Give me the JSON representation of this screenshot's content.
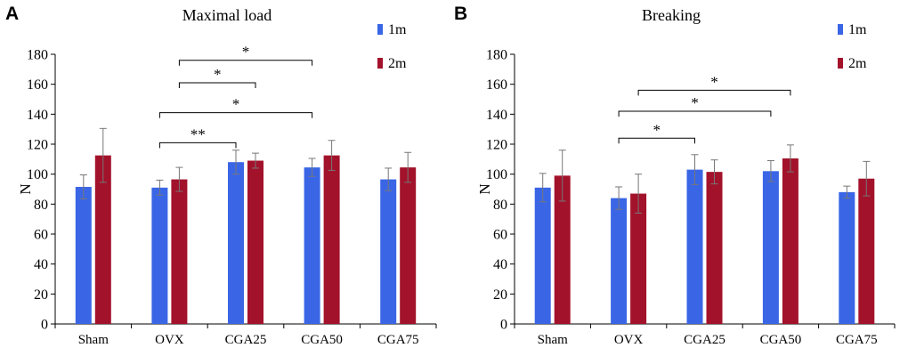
{
  "panels": [
    {
      "letter": "A"
    },
    {
      "letter": "B"
    }
  ],
  "chart_data": [
    {
      "type": "bar",
      "title": "Maximal load",
      "xlabel": "",
      "ylabel": "N",
      "ylim": [
        0,
        180
      ],
      "yticks": [
        0,
        20,
        40,
        60,
        80,
        100,
        120,
        140,
        160,
        180
      ],
      "categories": [
        "Sham",
        "OVX",
        "CGA25",
        "CGA50",
        "CGA75"
      ],
      "legend_position": "top-right",
      "series": [
        {
          "name": "1m",
          "color": "#3A66E6",
          "values": [
            91.5,
            91,
            108,
            104.5,
            96.5
          ],
          "errors": [
            8,
            5,
            8,
            6,
            7.5
          ]
        },
        {
          "name": "2m",
          "color": "#A3122B",
          "values": [
            112.5,
            96.5,
            109,
            112.5,
            104.5
          ],
          "errors": [
            18,
            8,
            5,
            10,
            10
          ]
        }
      ],
      "significance": [
        {
          "from": 1,
          "from_series": 0,
          "to": 2,
          "to_series": 0,
          "level": 121,
          "label": "**"
        },
        {
          "from": 1,
          "from_series": 0,
          "to": 3,
          "to_series": 0,
          "level": 141,
          "label": "*"
        },
        {
          "from": 1,
          "from_series": 1,
          "to": 2,
          "to_series": 1,
          "level": 161,
          "label": "*"
        },
        {
          "from": 1,
          "from_series": 1,
          "to": 3,
          "to_series": 0,
          "level": 176,
          "label": "*"
        }
      ]
    },
    {
      "type": "bar",
      "title": "Breaking",
      "xlabel": "",
      "ylabel": "N",
      "ylim": [
        0,
        180
      ],
      "yticks": [
        0,
        20,
        40,
        60,
        80,
        100,
        120,
        140,
        160,
        180
      ],
      "categories": [
        "Sham",
        "OVX",
        "CGA25",
        "CGA50",
        "CGA75"
      ],
      "legend_position": "top-right",
      "series": [
        {
          "name": "1m",
          "color": "#3A66E6",
          "values": [
            91,
            84,
            103,
            102,
            88
          ],
          "errors": [
            9.5,
            7.5,
            10,
            7,
            4
          ]
        },
        {
          "name": "2m",
          "color": "#A3122B",
          "values": [
            99,
            87,
            101.5,
            110.5,
            97
          ],
          "errors": [
            17,
            13,
            8,
            9,
            11.5
          ]
        }
      ],
      "significance": [
        {
          "from": 1,
          "from_series": 0,
          "to": 2,
          "to_series": 0,
          "level": 124,
          "label": "*"
        },
        {
          "from": 1,
          "from_series": 0,
          "to": 3,
          "to_series": 0,
          "level": 142,
          "label": "*"
        },
        {
          "from": 1,
          "from_series": 1,
          "to": 3,
          "to_series": 1,
          "level": 156,
          "label": "*"
        }
      ]
    }
  ]
}
